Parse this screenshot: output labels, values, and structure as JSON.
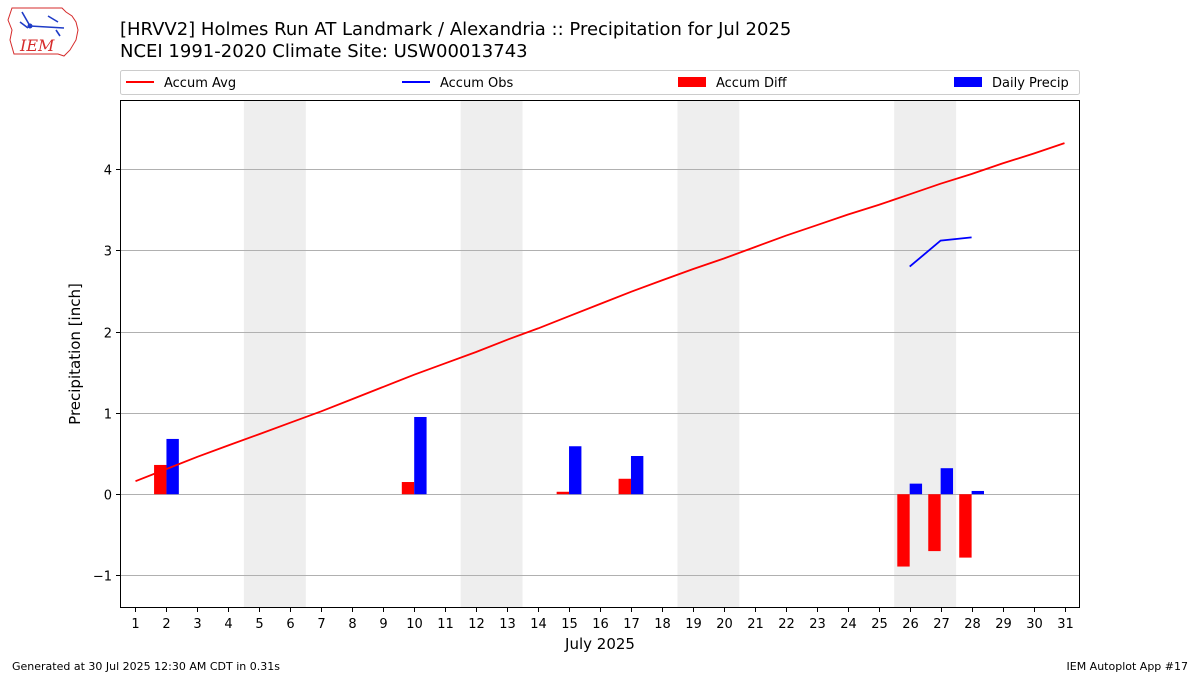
{
  "header": {
    "title_line1": "[HRVV2] Holmes Run  AT Landmark / Alexandria :: Precipitation for Jul 2025",
    "title_line2": "NCEI 1991-2020 Climate Site: USW00013743"
  },
  "logo": {
    "text": "IEM"
  },
  "footer": {
    "left": "Generated at 30 Jul 2025 12:30 AM CDT in 0.31s",
    "right": "IEM Autoplot App #17"
  },
  "colors": {
    "accum_avg": "#ff0000",
    "accum_obs": "#0000ff",
    "accum_diff": "#ff0000",
    "daily_precip": "#0000ff",
    "weekend_shade": "#eeeeee",
    "grid": "#b0b0b0"
  },
  "chart_data": {
    "type": "bar",
    "xlabel": "July 2025",
    "ylabel": "Precipitation [inch]",
    "xlim": [
      0.5,
      31.5
    ],
    "ylim": [
      -1.4,
      4.85
    ],
    "x_ticks": [
      1,
      2,
      3,
      4,
      5,
      6,
      7,
      8,
      9,
      10,
      11,
      12,
      13,
      14,
      15,
      16,
      17,
      18,
      19,
      20,
      21,
      22,
      23,
      24,
      25,
      26,
      27,
      28,
      29,
      30,
      31
    ],
    "y_ticks": [
      -1,
      0,
      1,
      2,
      3,
      4
    ],
    "y_tick_labels": [
      "−1",
      "0",
      "1",
      "2",
      "3",
      "4"
    ],
    "grid": "horizontal",
    "legend_placement": "top",
    "weekend_spans": [
      [
        4.5,
        6.5
      ],
      [
        11.5,
        13.5
      ],
      [
        18.5,
        20.5
      ],
      [
        25.5,
        27.5
      ]
    ],
    "legend": [
      {
        "name": "Accum Avg",
        "kind": "line",
        "color": "#ff0000"
      },
      {
        "name": "Accum Obs",
        "kind": "line",
        "color": "#0000ff"
      },
      {
        "name": "Accum Diff",
        "kind": "bar",
        "color": "#ff0000"
      },
      {
        "name": "Daily Precip",
        "kind": "bar",
        "color": "#0000ff"
      }
    ],
    "series": [
      {
        "name": "Accum Avg",
        "type": "line",
        "x": [
          1,
          2,
          3,
          4,
          5,
          6,
          7,
          8,
          9,
          10,
          11,
          12,
          13,
          14,
          15,
          16,
          17,
          18,
          19,
          20,
          21,
          22,
          23,
          24,
          25,
          26,
          27,
          28,
          29,
          30,
          31
        ],
        "values": [
          0.16,
          0.31,
          0.46,
          0.6,
          0.74,
          0.88,
          1.02,
          1.17,
          1.32,
          1.47,
          1.61,
          1.75,
          1.9,
          2.04,
          2.19,
          2.34,
          2.49,
          2.63,
          2.77,
          2.9,
          3.04,
          3.18,
          3.31,
          3.44,
          3.56,
          3.69,
          3.82,
          3.94,
          4.07,
          4.19,
          4.32
        ]
      },
      {
        "name": "Accum Obs",
        "type": "line",
        "x": [
          26,
          27,
          28
        ],
        "values": [
          2.8,
          3.12,
          3.16
        ]
      },
      {
        "name": "Accum Diff",
        "type": "bar",
        "x": [
          2,
          10,
          15,
          17,
          26,
          27,
          28
        ],
        "values": [
          0.36,
          0.15,
          0.03,
          0.19,
          -0.89,
          -0.7,
          -0.78
        ]
      },
      {
        "name": "Daily Precip",
        "type": "bar",
        "x": [
          2,
          10,
          15,
          17,
          26,
          27,
          28
        ],
        "values": [
          0.68,
          0.95,
          0.59,
          0.47,
          0.13,
          0.32,
          0.04
        ]
      }
    ]
  }
}
